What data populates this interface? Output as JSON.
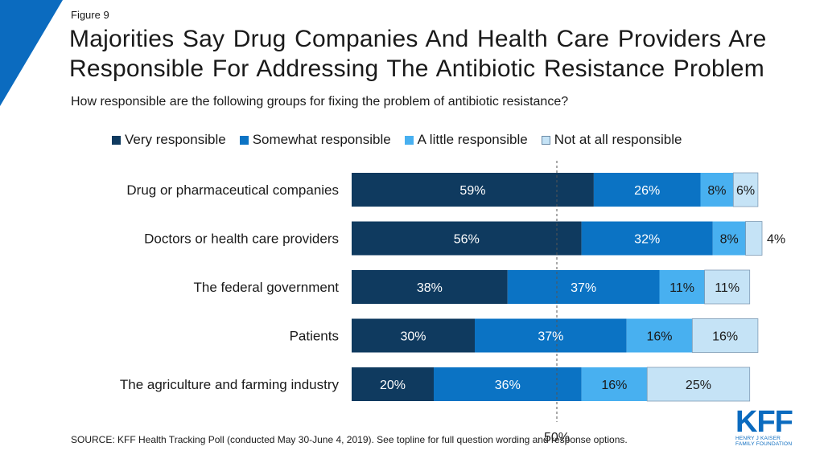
{
  "figure_label": "Figure 9",
  "title": "Majorities Say Drug Companies And Health Care Providers Are Responsible For Addressing The Antibiotic Resistance Problem",
  "subtitle": "How responsible are the following groups for fixing the problem of antibiotic resistance?",
  "source": "SOURCE: KFF Health Tracking Poll (conducted May 30-June 4, 2019). See topline for full question wording and response options.",
  "logo": {
    "mark": "KFF",
    "line1": "HENRY J KAISER",
    "line2": "FAMILY FOUNDATION"
  },
  "colors": {
    "very": "#0f3a5f",
    "somewhat": "#0b73c4",
    "little": "#48b0f0",
    "not_at_all": "#c5e3f6",
    "corner": "#0b6bbf"
  },
  "chart_data": {
    "type": "bar",
    "orientation": "horizontal",
    "stacked": true,
    "categories": [
      "Drug or pharmaceutical companies",
      "Doctors or health care providers",
      "The federal government",
      "Patients",
      "The agriculture and farming industry"
    ],
    "series": [
      {
        "name": "Very responsible",
        "values": [
          59,
          56,
          38,
          30,
          20
        ],
        "color": "#0f3a5f"
      },
      {
        "name": "Somewhat responsible",
        "values": [
          26,
          32,
          37,
          37,
          36
        ],
        "color": "#0b73c4"
      },
      {
        "name": "A little responsible",
        "values": [
          8,
          8,
          11,
          16,
          16
        ],
        "color": "#48b0f0"
      },
      {
        "name": "Not at all responsible",
        "values": [
          6,
          4,
          11,
          16,
          25
        ],
        "color": "#c5e3f6"
      }
    ],
    "value_suffix": "%",
    "reference_line": {
      "value": 50,
      "label": "50%"
    },
    "xlim": [
      0,
      100
    ],
    "legend_position": "top"
  }
}
